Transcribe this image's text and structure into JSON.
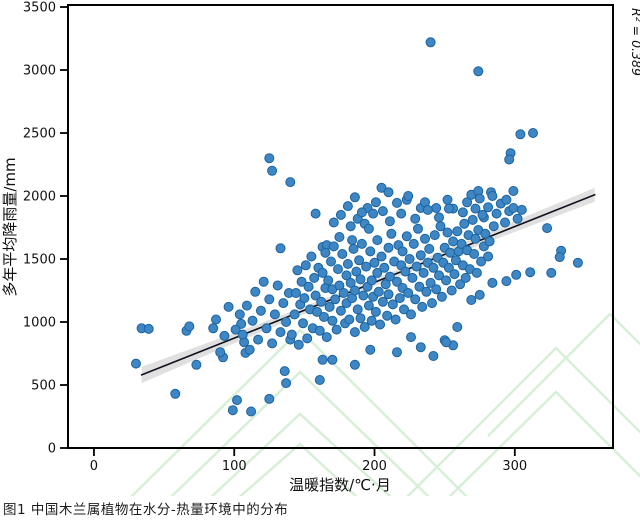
{
  "figure": {
    "caption": "图1 中国木兰属植物在水分-热量环境中的分布",
    "r_squared_label": "R² = 0.389"
  },
  "chart_data": {
    "type": "scatter",
    "title": "",
    "xlabel": "温暖指数/℃·月",
    "ylabel": "多年平均降雨量/mm",
    "x_ticks": [
      0,
      100,
      200,
      300
    ],
    "y_ticks": [
      0,
      500,
      1000,
      1500,
      2000,
      2500,
      3000,
      3500
    ],
    "xlim": [
      -18.5,
      370
    ],
    "ylim": [
      0,
      3516
    ],
    "grid": false,
    "legend": "none",
    "r_squared": 0.389,
    "regression_line": {
      "x1": 34,
      "y1": 580,
      "x2": 357,
      "y2": 2010
    },
    "confidence_band": [
      [
        34,
        645
      ],
      [
        100,
        912
      ],
      [
        180,
        1251
      ],
      [
        280,
        1707
      ],
      [
        357,
        2066
      ],
      [
        357,
        1954
      ],
      [
        280,
        1631
      ],
      [
        180,
        1201
      ],
      [
        100,
        832
      ],
      [
        34,
        515
      ]
    ],
    "colors": {
      "point_fill": "#3e87c4",
      "point_edge": "#1b639f",
      "line": "#10131f",
      "band": "#dadada",
      "frame": "#000000",
      "watermark": "#d7efd7"
    },
    "points": [
      [
        240,
        3220
      ],
      [
        274,
        2990
      ],
      [
        313,
        2500
      ],
      [
        304,
        2490
      ],
      [
        297,
        2340
      ],
      [
        296,
        2290
      ],
      [
        125,
        2300
      ],
      [
        127,
        2200
      ],
      [
        140,
        2110
      ],
      [
        158,
        1860
      ],
      [
        30,
        670
      ],
      [
        34,
        950
      ],
      [
        39,
        945
      ],
      [
        58,
        430
      ],
      [
        66,
        930
      ],
      [
        68,
        965
      ],
      [
        73,
        660
      ],
      [
        85,
        950
      ],
      [
        92,
        720
      ],
      [
        99,
        300
      ],
      [
        102,
        380
      ],
      [
        105,
        985
      ],
      [
        107,
        840
      ],
      [
        108,
        755
      ],
      [
        112,
        290
      ],
      [
        125,
        390
      ],
      [
        137,
        515
      ],
      [
        136,
        610
      ],
      [
        161,
        540
      ],
      [
        163,
        700
      ],
      [
        170,
        700
      ],
      [
        186,
        660
      ],
      [
        197,
        780
      ],
      [
        216,
        760
      ],
      [
        226,
        880
      ],
      [
        323,
        1745
      ],
      [
        333,
        1565
      ],
      [
        332,
        1515
      ],
      [
        345,
        1470
      ],
      [
        326,
        1390
      ],
      [
        311,
        1395
      ],
      [
        301,
        1375
      ],
      [
        284,
        1310
      ],
      [
        294,
        1325
      ],
      [
        275,
        1215
      ],
      [
        269,
        1175
      ],
      [
        259,
        960
      ],
      [
        250,
        855
      ],
      [
        256,
        815
      ],
      [
        242,
        730
      ],
      [
        233,
        800
      ],
      [
        251,
        840
      ],
      [
        263,
        1870
      ],
      [
        266,
        1950
      ],
      [
        269,
        2010
      ],
      [
        272,
        1900
      ],
      [
        274,
        2040
      ],
      [
        275,
        1980
      ],
      [
        278,
        1830
      ],
      [
        281,
        1910
      ],
      [
        283,
        2030
      ],
      [
        284,
        2000
      ],
      [
        287,
        1860
      ],
      [
        290,
        1940
      ],
      [
        293,
        1790
      ],
      [
        294,
        1970
      ],
      [
        296,
        1880
      ],
      [
        299,
        2040
      ],
      [
        299,
        1905
      ],
      [
        302,
        1820
      ],
      [
        305,
        1890
      ],
      [
        205,
        2065
      ],
      [
        210,
        2030
      ],
      [
        195,
        1905
      ],
      [
        216,
        1945
      ],
      [
        223,
        1970
      ],
      [
        233,
        1905
      ],
      [
        175,
        1675
      ],
      [
        184,
        1650
      ],
      [
        133,
        1585
      ],
      [
        163,
        1595
      ],
      [
        166,
        1610
      ],
      [
        183,
        1760
      ],
      [
        188,
        1820
      ],
      [
        193,
        1780
      ],
      [
        199,
        1860
      ],
      [
        236,
        1950
      ],
      [
        244,
        1905
      ],
      [
        252,
        1970
      ],
      [
        256,
        1900
      ],
      [
        171,
        1790
      ],
      [
        176,
        1850
      ],
      [
        181,
        1920
      ],
      [
        186,
        1990
      ],
      [
        191,
        1870
      ],
      [
        196,
        1740
      ],
      [
        201,
        1950
      ],
      [
        206,
        1880
      ],
      [
        211,
        1800
      ],
      [
        219,
        1860
      ],
      [
        224,
        2000
      ],
      [
        229,
        1820
      ],
      [
        238,
        1890
      ],
      [
        246,
        1830
      ],
      [
        253,
        1900
      ],
      [
        87,
        1020
      ],
      [
        90,
        760
      ],
      [
        93,
        890
      ],
      [
        96,
        1120
      ],
      [
        101,
        940
      ],
      [
        104,
        1060
      ],
      [
        106,
        900
      ],
      [
        109,
        1130
      ],
      [
        111,
        780
      ],
      [
        113,
        1010
      ],
      [
        115,
        1240
      ],
      [
        117,
        860
      ],
      [
        119,
        1090
      ],
      [
        121,
        1320
      ],
      [
        123,
        950
      ],
      [
        125,
        1180
      ],
      [
        127,
        830
      ],
      [
        129,
        1060
      ],
      [
        131,
        1290
      ],
      [
        133,
        920
      ],
      [
        135,
        1150
      ],
      [
        137,
        1000
      ],
      [
        139,
        1230
      ],
      [
        140,
        860
      ],
      [
        141,
        900
      ],
      [
        143,
        1060
      ],
      [
        144,
        1230
      ],
      [
        145,
        1410
      ],
      [
        146,
        820
      ],
      [
        147,
        1140
      ],
      [
        148,
        1320
      ],
      [
        149,
        990
      ],
      [
        150,
        1190
      ],
      [
        151,
        1450
      ],
      [
        152,
        870
      ],
      [
        153,
        1280
      ],
      [
        154,
        1100
      ],
      [
        155,
        1520
      ],
      [
        156,
        950
      ],
      [
        157,
        1350
      ],
      [
        158,
        1210
      ],
      [
        159,
        1080
      ],
      [
        160,
        1430
      ],
      [
        161,
        930
      ],
      [
        162,
        1160
      ],
      [
        163,
        1390
      ],
      [
        164,
        1040
      ],
      [
        165,
        1270
      ],
      [
        165,
        1550
      ],
      [
        166,
        880
      ],
      [
        167,
        1330
      ],
      [
        168,
        1120
      ],
      [
        169,
        1480
      ],
      [
        170,
        1010
      ],
      [
        170,
        1260
      ],
      [
        171,
        1600
      ],
      [
        172,
        1180
      ],
      [
        173,
        940
      ],
      [
        174,
        1420
      ],
      [
        175,
        1290
      ],
      [
        176,
        1090
      ],
      [
        177,
        1540
      ],
      [
        178,
        1230
      ],
      [
        179,
        990
      ],
      [
        180,
        1370
      ],
      [
        180,
        1150
      ],
      [
        181,
        1460
      ],
      [
        182,
        1020
      ],
      [
        183,
        1310
      ],
      [
        184,
        1190
      ],
      [
        185,
        1580
      ],
      [
        186,
        920
      ],
      [
        186,
        1250
      ],
      [
        187,
        1400
      ],
      [
        188,
        1100
      ],
      [
        189,
        1490
      ],
      [
        190,
        1030
      ],
      [
        190,
        1340
      ],
      [
        191,
        1620
      ],
      [
        192,
        1210
      ],
      [
        193,
        960
      ],
      [
        194,
        1440
      ],
      [
        195,
        1280
      ],
      [
        196,
        1130
      ],
      [
        197,
        1560
      ],
      [
        198,
        1010
      ],
      [
        198,
        1330
      ],
      [
        199,
        1200
      ],
      [
        200,
        1470
      ],
      [
        201,
        1080
      ],
      [
        202,
        1390
      ],
      [
        202,
        1650
      ],
      [
        203,
        1240
      ],
      [
        204,
        980
      ],
      [
        205,
        1520
      ],
      [
        206,
        1160
      ],
      [
        207,
        1430
      ],
      [
        208,
        1300
      ],
      [
        209,
        1050
      ],
      [
        210,
        1590
      ],
      [
        210,
        1220
      ],
      [
        211,
        1360
      ],
      [
        212,
        1700
      ],
      [
        213,
        1140
      ],
      [
        214,
        1480
      ],
      [
        215,
        1020
      ],
      [
        216,
        1320
      ],
      [
        217,
        1610
      ],
      [
        218,
        1190
      ],
      [
        219,
        1450
      ],
      [
        220,
        1270
      ],
      [
        220,
        1560
      ],
      [
        221,
        1100
      ],
      [
        222,
        1400
      ],
      [
        223,
        1680
      ],
      [
        224,
        1230
      ],
      [
        225,
        1500
      ],
      [
        226,
        1060
      ],
      [
        227,
        1350
      ],
      [
        228,
        1620
      ],
      [
        229,
        1180
      ],
      [
        230,
        1440
      ],
      [
        231,
        1740
      ],
      [
        232,
        1280
      ],
      [
        233,
        1530
      ],
      [
        234,
        1120
      ],
      [
        235,
        1390
      ],
      [
        236,
        1660
      ],
      [
        237,
        1240
      ],
      [
        238,
        1470
      ],
      [
        239,
        1580
      ],
      [
        240,
        1310
      ],
      [
        241,
        1150
      ],
      [
        242,
        1430
      ],
      [
        243,
        1690
      ],
      [
        244,
        1260
      ],
      [
        245,
        1510
      ],
      [
        246,
        1370
      ],
      [
        247,
        1760
      ],
      [
        248,
        1200
      ],
      [
        249,
        1470
      ],
      [
        250,
        1590
      ],
      [
        251,
        1330
      ],
      [
        252,
        1710
      ],
      [
        253,
        1430
      ],
      [
        254,
        1550
      ],
      [
        255,
        1250
      ],
      [
        256,
        1640
      ],
      [
        257,
        1380
      ],
      [
        258,
        1490
      ],
      [
        259,
        1720
      ],
      [
        260,
        1560
      ],
      [
        261,
        1300
      ],
      [
        262,
        1620
      ],
      [
        263,
        1450
      ],
      [
        264,
        1780
      ],
      [
        265,
        1350
      ],
      [
        266,
        1570
      ],
      [
        267,
        1690
      ],
      [
        268,
        1420
      ],
      [
        270,
        1810
      ],
      [
        271,
        1540
      ],
      [
        272,
        1660
      ],
      [
        273,
        1390
      ],
      [
        274,
        1730
      ],
      [
        276,
        1480
      ],
      [
        277,
        1850
      ],
      [
        278,
        1600
      ],
      [
        279,
        1700
      ],
      [
        281,
        1520
      ],
      [
        282,
        1640
      ],
      [
        285,
        1760
      ]
    ]
  }
}
